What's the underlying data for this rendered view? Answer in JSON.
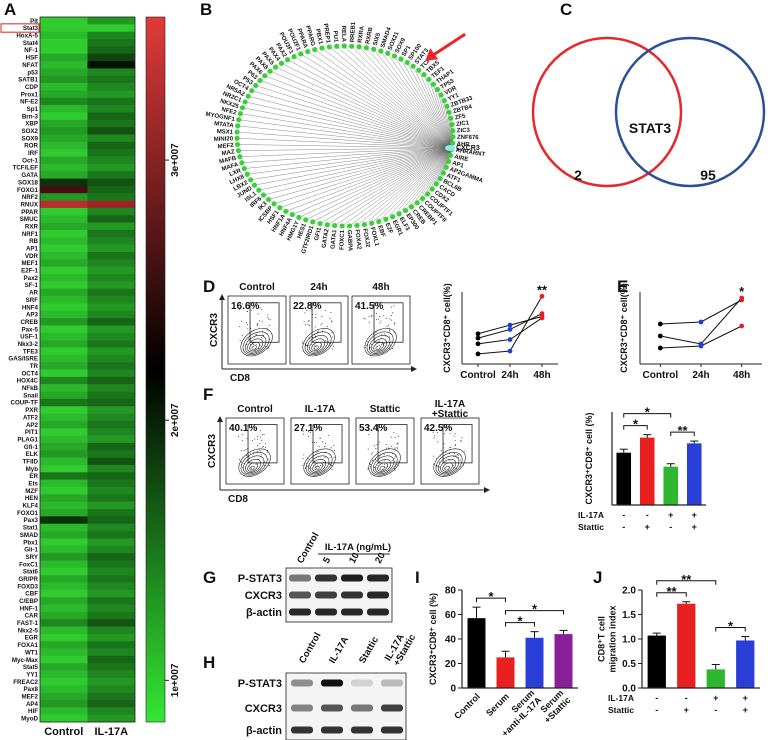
{
  "panel_labels": [
    "A",
    "B",
    "C",
    "D",
    "E",
    "F",
    "G",
    "H",
    "I",
    "J"
  ],
  "heatmap": {
    "rows": [
      "Pit",
      "Stat3",
      "HoxA-5",
      "Stat4",
      "NF-1",
      "HSF",
      "NFAT",
      "p53",
      "SATB1",
      "CDP",
      "Prox1",
      "NF-E2",
      "Sp1",
      "Brn-3",
      "XBP",
      "SOX2",
      "SOX9",
      "ROR",
      "IRF",
      "Oct-1",
      "TCF/LEF",
      "GATA",
      "SOX18",
      "FOXG1",
      "NRF2",
      "RNUX",
      "PPAR",
      "SMUC",
      "RXR",
      "NRF1",
      "RB",
      "AP1",
      "VDR",
      "MEF1",
      "E2F-1",
      "Pax2",
      "SF-1",
      "AR",
      "SRF",
      "HNF4",
      "AP3",
      "CREB",
      "Pax-5",
      "USF-1",
      "Nkx3-2",
      "TFE3",
      "GAS/ISRE",
      "TR",
      "OCT4",
      "HOX4C",
      "NFkB",
      "Snail",
      "COUP-TF",
      "PXR",
      "ATF2",
      "AP2",
      "PIT1",
      "PLAG1",
      "Gfi-1",
      "ELK",
      "TFIID",
      "Myb",
      "ER",
      "Ets",
      "MZF",
      "HEN",
      "KLF4",
      "FOXO1",
      "Pax3",
      "Stat1",
      "SMAD",
      "Pbx1",
      "Gli-1",
      "SRY",
      "FoxC1",
      "Stat6",
      "GR/PR",
      "FOXD3",
      "CBF",
      "C/EBP",
      "HNF-1",
      "CAR",
      "FAST-1",
      "Nkx2-5",
      "EGR",
      "FOXA1",
      "WT1",
      "Myc-Max",
      "Stat5",
      "YY1",
      "FREAC2",
      "Pax8",
      "MEF2",
      "AP4",
      "HIF",
      "MyoD"
    ],
    "columns": [
      "Control",
      "IL-17A"
    ],
    "values": [
      [
        10000000.0,
        10000000.0,
        11000000.0,
        10000000.0,
        10000000.0,
        12000000.0,
        11000000.0,
        12000000.0,
        13000000.0,
        11000000.0,
        12000000.0,
        14000000.0,
        11000000.0,
        10000000.0,
        12000000.0,
        13000000.0,
        12000000.0,
        11000000.0,
        10000000.0,
        12000000.0,
        11000000.0,
        12000000.0,
        19000000.0,
        26000000.0,
        13000000.0,
        33000000.0,
        10000000.0,
        11000000.0,
        12000000.0,
        10000000.0,
        11000000.0,
        10000000.0,
        11000000.0,
        12000000.0,
        10000000.0,
        11000000.0,
        10000000.0,
        12000000.0,
        11000000.0,
        10000000.0,
        11000000.0,
        13000000.0,
        10000000.0,
        11000000.0,
        12000000.0,
        10000000.0,
        11000000.0,
        12000000.0,
        10000000.0,
        14000000.0,
        11000000.0,
        12000000.0,
        15000000.0,
        10000000.0,
        11000000.0,
        12000000.0,
        10000000.0,
        11000000.0,
        12000000.0,
        13000000.0,
        11000000.0,
        10000000.0,
        15000000.0,
        11000000.0,
        10000000.0,
        12000000.0,
        11000000.0,
        12000000.0,
        19000000.0,
        11000000.0,
        12000000.0,
        10000000.0,
        11000000.0,
        13000000.0,
        11000000.0,
        10000000.0,
        12000000.0,
        11000000.0,
        10000000.0,
        12000000.0,
        11000000.0,
        12000000.0,
        14000000.0,
        11000000.0,
        10000000.0,
        12000000.0,
        11000000.0,
        10000000.0,
        12000000.0,
        11000000.0,
        10000000.0,
        11000000.0,
        12000000.0,
        13000000.0,
        11000000.0,
        10000000.0
      ],
      [
        13000000.0,
        10000000.0,
        14000000.0,
        15000000.0,
        16000000.0,
        18000000.0,
        21000000.0,
        14000000.0,
        15000000.0,
        14000000.0,
        13000000.0,
        15000000.0,
        14000000.0,
        16000000.0,
        15000000.0,
        17000000.0,
        14000000.0,
        16000000.0,
        15000000.0,
        14000000.0,
        13000000.0,
        15000000.0,
        17000000.0,
        16000000.0,
        15000000.0,
        31000000.0,
        14000000.0,
        16000000.0,
        13000000.0,
        15000000.0,
        14000000.0,
        13000000.0,
        15000000.0,
        14000000.0,
        13000000.0,
        14000000.0,
        13000000.0,
        15000000.0,
        14000000.0,
        13000000.0,
        14000000.0,
        16000000.0,
        13000000.0,
        14000000.0,
        15000000.0,
        13000000.0,
        14000000.0,
        15000000.0,
        14000000.0,
        16000000.0,
        14000000.0,
        15000000.0,
        16000000.0,
        13000000.0,
        14000000.0,
        15000000.0,
        14000000.0,
        13000000.0,
        16000000.0,
        15000000.0,
        17000000.0,
        14000000.0,
        16000000.0,
        15000000.0,
        14000000.0,
        15000000.0,
        13000000.0,
        15000000.0,
        16000000.0,
        14000000.0,
        15000000.0,
        13000000.0,
        14000000.0,
        16000000.0,
        15000000.0,
        14000000.0,
        15000000.0,
        14000000.0,
        13000000.0,
        15000000.0,
        14000000.0,
        15000000.0,
        17000000.0,
        14000000.0,
        13000000.0,
        15000000.0,
        14000000.0,
        16000000.0,
        15000000.0,
        14000000.0,
        13000000.0,
        14000000.0,
        15000000.0,
        16000000.0,
        14000000.0,
        13000000.0
      ]
    ],
    "clim": [
      8400000,
      35500000
    ],
    "colorscale": [
      "#35e635",
      "#000000",
      "#e23a3a"
    ],
    "colorbar_ticks": [
      {
        "value": 10000000,
        "label": "1e+007"
      },
      {
        "value": 20000000,
        "label": "2e+007"
      },
      {
        "value": 30000000,
        "label": "3e+007"
      }
    ]
  },
  "network": {
    "hub": "CXCR3",
    "nodes": [
      "PAX5",
      "PAX4",
      "PAX2",
      "POU3F1",
      "POU2F1",
      "PPARA",
      "PPARG",
      "PBX1",
      "PREP1",
      "PU1",
      "RELA",
      "RREB1",
      "RXRA",
      "RXRB",
      "SIX5",
      "SMAD4",
      "SOX21",
      "SOX9",
      "SP1",
      "SP100",
      "STAT3",
      "TCF7",
      "TBX5",
      "TEF1",
      "THAP1",
      "TP53",
      "VDR",
      "YY1",
      "ZBTB33",
      "ZBTB4",
      "ZF5",
      "ZIC1",
      "ZIC3",
      "ZNF676",
      "AHR",
      "AHRARNT",
      "AIRE",
      "AP1",
      "AP2GAMMA",
      "ATF1",
      "BCL6B",
      "CACD",
      "CDX2",
      "COUPTF1",
      "COUPTFII",
      "CREBP1",
      "CREB",
      "EP300",
      "ELF3",
      "EGR1",
      "E2F",
      "EBF",
      "FOXL1",
      "FOXJ2",
      "FOXA2",
      "GABPA",
      "FOXC1",
      "GATA1",
      "GATA2",
      "GFI1",
      "GTF2IRD1",
      "HES1",
      "HMG1Y",
      "HNF4A",
      "HNF1A",
      "HSF1",
      "ICSBP",
      "IK3",
      "IRF6",
      "ISL1",
      "JUND",
      "LBX2",
      "LHX8",
      "LXR",
      "MAFA",
      "MAFB",
      "MAZ",
      "MEF2",
      "MINI20",
      "MSX1",
      "MTATA",
      "MYOGNF1",
      "NFE2",
      "NKX25",
      "NR2C1",
      "NR5A2",
      "OCT4",
      "P53",
      "P63",
      "PAX6",
      "PAX8"
    ],
    "node_color": "#3ccf3c",
    "hub_color": "#7ff0e0",
    "edge_color": "#555555"
  },
  "venn": {
    "label": "STAT3",
    "left_only": 2,
    "right_only": 95,
    "left_color": "#e8262b",
    "right_color": "#2c4f96"
  },
  "flow_d": {
    "x_label": "CD8",
    "y_label": "CXCR3",
    "plots": [
      {
        "title": "Control",
        "percent": "16.6%"
      },
      {
        "title": "24h",
        "percent": "22.8%"
      },
      {
        "title": "48h",
        "percent": "41.5%"
      }
    ]
  },
  "chart_d": {
    "type": "line",
    "y_label": "CXCR3⁺CD8⁺ cell(%)",
    "categories": [
      "Control",
      "24h",
      "48h"
    ],
    "ylim": [
      10,
      60
    ],
    "point_colors": [
      "#000000",
      "#1f3fd0",
      "#e82020"
    ],
    "series": [
      {
        "values": [
          31,
          37,
          43
        ]
      },
      {
        "values": [
          28,
          34,
          45
        ]
      },
      {
        "values": [
          24,
          27,
          42
        ]
      },
      {
        "values": [
          17,
          19,
          57
        ]
      }
    ],
    "annotation": "**"
  },
  "chart_e": {
    "type": "line",
    "y_label": "CXCR3⁺CD8⁺ cell(%)",
    "categories": [
      "Control",
      "24h",
      "48h"
    ],
    "ylim": [
      0,
      36
    ],
    "point_colors": [
      "#000000",
      "#1f3fd0",
      "#e82020"
    ],
    "series": [
      {
        "values": [
          20,
          21,
          32
        ]
      },
      {
        "values": [
          14,
          10,
          33
        ]
      },
      {
        "values": [
          8,
          9,
          19
        ]
      }
    ],
    "annotation": "*"
  },
  "flow_f": {
    "x_label": "CD8",
    "y_label": "CXCR3",
    "plots": [
      {
        "title": "Control",
        "percent": "40.1%"
      },
      {
        "title": "IL-17A",
        "percent": "27.1%"
      },
      {
        "title": "Stattic",
        "percent": "53.4%"
      },
      {
        "title": "IL-17A +Stattic",
        "percent": "42.5%"
      }
    ]
  },
  "chart_f": {
    "type": "bar",
    "y_label": "CXCR3⁺CD8⁺ cell (%)",
    "values": [
      45,
      58,
      33,
      53
    ],
    "errors": [
      3,
      2.5,
      2.5,
      2
    ],
    "colors": [
      "#000000",
      "#e82020",
      "#2fb82f",
      "#2a3fd8"
    ],
    "ylim": [
      0,
      80
    ],
    "conditions": [
      {
        "name": "IL-17A",
        "signs": [
          "-",
          "-",
          "+",
          "+"
        ]
      },
      {
        "name": "Stattic",
        "signs": [
          "-",
          "+",
          "-",
          "+"
        ]
      }
    ],
    "comparisons": [
      {
        "bars": [
          0,
          1
        ],
        "label": "*"
      },
      {
        "bars": [
          0,
          2
        ],
        "label": "*"
      },
      {
        "bars": [
          2,
          3
        ],
        "label": "**"
      }
    ]
  },
  "blot_g": {
    "columns": [
      "Control",
      "5",
      "10",
      "20"
    ],
    "group_label": "IL-17A (ng/mL)",
    "rows": [
      "P-STAT3",
      "CXCR3",
      "β-actin"
    ]
  },
  "blot_h": {
    "columns": [
      "Control",
      "IL-17A",
      "Stattic",
      "IL-17A +Stattic"
    ],
    "rows": [
      "P-STAT3",
      "CXCR3",
      "β-actin"
    ]
  },
  "chart_i": {
    "type": "bar",
    "y_label": "CXCR3⁺CD8⁺ cell (%)",
    "categories": [
      "Control",
      "Serum",
      "Serum +anti-IL-17A",
      "Serum +Stattic"
    ],
    "values": [
      57,
      25,
      41,
      44
    ],
    "errors": [
      9,
      5,
      5,
      3
    ],
    "colors": [
      "#000000",
      "#e82020",
      "#2a3fd8",
      "#8a1f9a"
    ],
    "ylim": [
      0,
      80
    ],
    "yticks": [
      0,
      20,
      40,
      60,
      80
    ],
    "comparisons": [
      {
        "bars": [
          0,
          1
        ],
        "label": "*"
      },
      {
        "bars": [
          1,
          2
        ],
        "label": "*"
      },
      {
        "bars": [
          1,
          3
        ],
        "label": "*"
      }
    ]
  },
  "chart_j": {
    "type": "bar",
    "y_label": "CD8⁺T cell migration index",
    "values": [
      1.07,
      1.72,
      0.38,
      0.97
    ],
    "errors": [
      0.05,
      0.04,
      0.1,
      0.08
    ],
    "colors": [
      "#000000",
      "#e82020",
      "#2fb82f",
      "#2a3fd8"
    ],
    "ylim": [
      0,
      2
    ],
    "yticks": [
      {
        "value": 0,
        "label": "0.0"
      },
      0.5,
      {
        "value": 1,
        "label": "1.0"
      },
      1.5,
      {
        "value": 2,
        "label": "2.0"
      }
    ],
    "conditions": [
      {
        "name": "IL-17A",
        "signs": [
          "-",
          "-",
          "+",
          "+"
        ]
      },
      {
        "name": "Stattic",
        "signs": [
          "-",
          "+",
          "-",
          "+"
        ]
      }
    ],
    "comparisons": [
      {
        "bars": [
          0,
          1
        ],
        "label": "**"
      },
      {
        "bars": [
          0,
          2
        ],
        "label": "**"
      },
      {
        "bars": [
          2,
          3
        ],
        "label": "*"
      }
    ]
  }
}
